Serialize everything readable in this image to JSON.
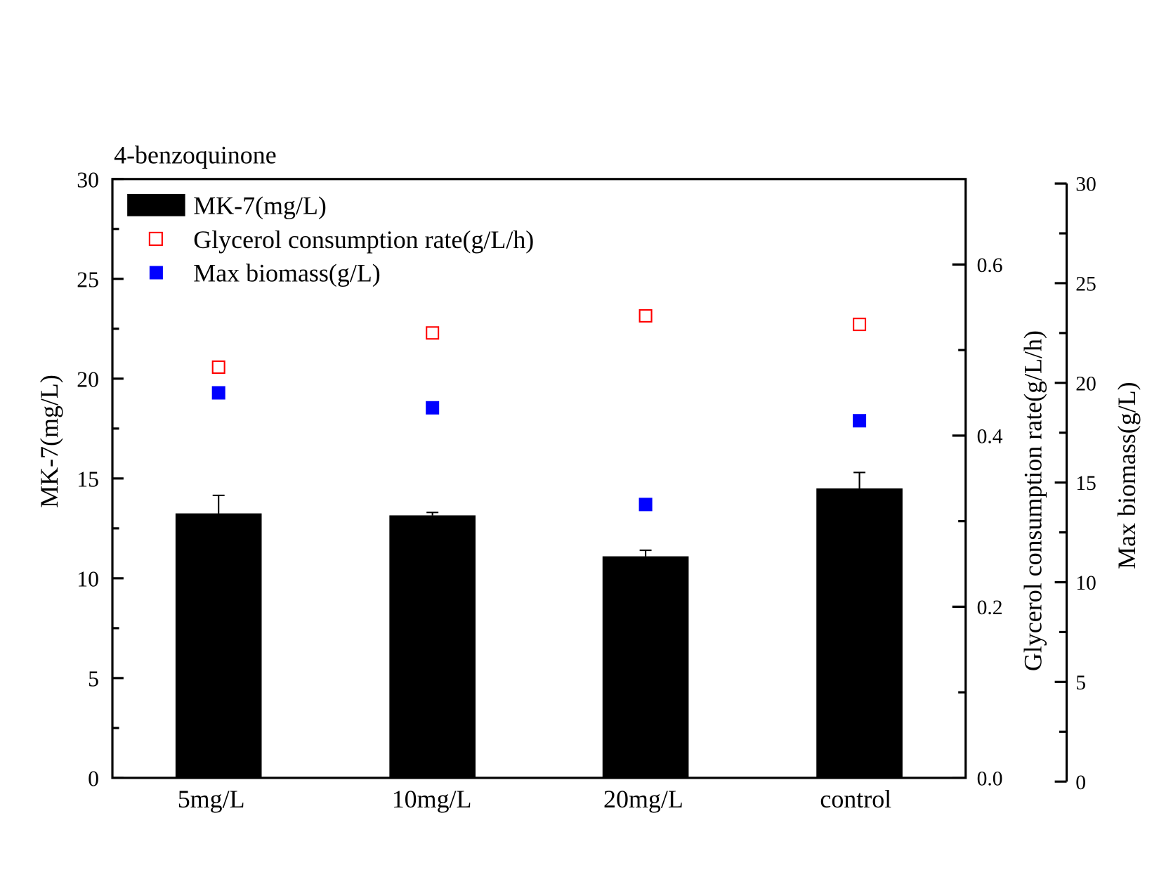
{
  "chart_data": {
    "type": "bar",
    "title": "4-benzoquinone",
    "categories": [
      "5mg/L",
      "10mg/L",
      "20mg/L",
      "control"
    ],
    "grid": false,
    "legend_position": "top-left",
    "axes": {
      "left": {
        "label": "MK-7(mg/L)",
        "range": [
          0,
          30
        ],
        "ticks": [
          "0",
          "5",
          "10",
          "15",
          "20",
          "25",
          "30"
        ]
      },
      "right1": {
        "label": "Glycerol consumption rate(g/L/h)",
        "range": [
          0,
          0.7
        ],
        "ticks": [
          "0.0",
          "0.2",
          "0.4",
          "0.6"
        ]
      },
      "right2": {
        "label": "Max biomass(g/L)",
        "range": [
          0,
          30
        ],
        "ticks": [
          "0",
          "5",
          "10",
          "15",
          "20",
          "25",
          "30"
        ]
      }
    },
    "series": [
      {
        "name": "MK-7(mg/L)",
        "type": "bar",
        "axis": "left",
        "color": "#000000",
        "values": [
          13.25,
          13.15,
          11.1,
          14.5
        ],
        "errors": [
          0.9,
          0.15,
          0.3,
          0.8
        ]
      },
      {
        "name": "Glycerol consumption rate(g/L/h)",
        "type": "scatter",
        "marker": "open-square",
        "axis": "right1",
        "color": "#ff0000",
        "values": [
          0.48,
          0.52,
          0.54,
          0.53
        ]
      },
      {
        "name": "Max biomass(g/L)",
        "type": "scatter",
        "marker": "filled-square",
        "axis": "right2",
        "color": "#0000ff",
        "values": [
          19.5,
          18.75,
          13.9,
          18.1
        ]
      }
    ]
  }
}
